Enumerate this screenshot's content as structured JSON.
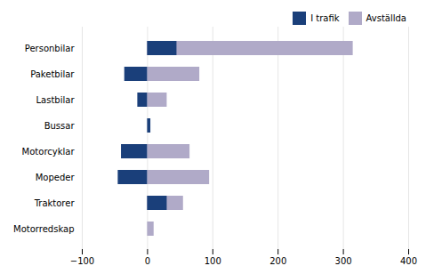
{
  "chart_data": {
    "type": "bar",
    "orientation": "horizontal",
    "categories": [
      "Personbilar",
      "Paketbilar",
      "Lastbilar",
      "Bussar",
      "Motorcyklar",
      "Mopeder",
      "Traktorer",
      "Motorredskap"
    ],
    "series": [
      {
        "name": "I trafik",
        "color": "#1a3f7a",
        "values": [
          45,
          -35,
          -15,
          5,
          -40,
          -45,
          30,
          0
        ]
      },
      {
        "name": "Avställda",
        "color": "#b0aac8",
        "values": [
          315,
          80,
          30,
          0,
          65,
          95,
          55,
          10
        ]
      }
    ],
    "xlim": [
      -100,
      400
    ],
    "xticks": [
      -100,
      0,
      100,
      200,
      300,
      400
    ],
    "grid": true,
    "legend": "right"
  }
}
